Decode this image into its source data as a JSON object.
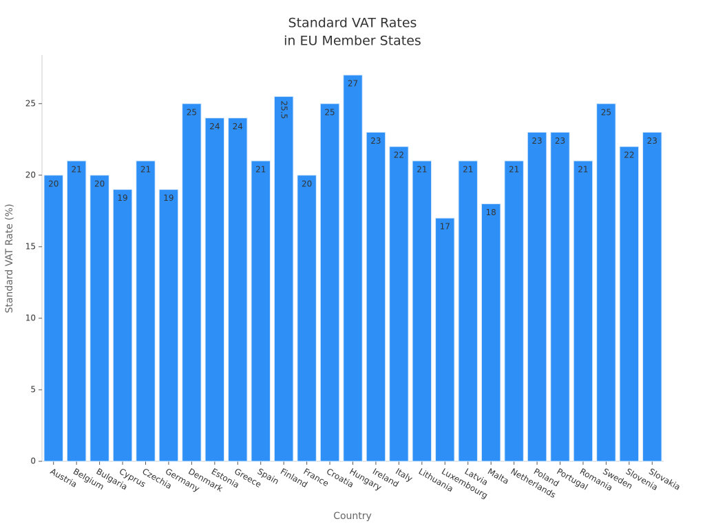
{
  "chart_data": {
    "type": "bar",
    "title": [
      "Standard VAT Rates",
      "in EU Member States"
    ],
    "x_label": "Country",
    "y_label": "Standard VAT Rate (%)",
    "categories": [
      "Austria",
      "Belgium",
      "Bulgaria",
      "Cyprus",
      "Czechia",
      "Germany",
      "Denmark",
      "Estonia",
      "Greece",
      "Spain",
      "Finland",
      "France",
      "Croatia",
      "Hungary",
      "Ireland",
      "Italy",
      "Lithuania",
      "Luxembourg",
      "Latvia",
      "Malta",
      "Netherlands",
      "Poland",
      "Portugal",
      "Romania",
      "Sweden",
      "Slovenia",
      "Slovakia"
    ],
    "values": [
      20,
      21,
      20,
      19,
      21,
      19,
      25,
      24,
      24,
      21,
      25.5,
      20,
      25,
      27,
      23,
      22,
      21,
      17,
      21,
      18,
      21,
      23,
      23,
      21,
      25,
      22,
      23
    ],
    "color": "#2e90f6",
    "ylim": [
      0,
      28.4
    ],
    "yticks": [
      0,
      5,
      10,
      15,
      20,
      25
    ],
    "grid": false
  }
}
